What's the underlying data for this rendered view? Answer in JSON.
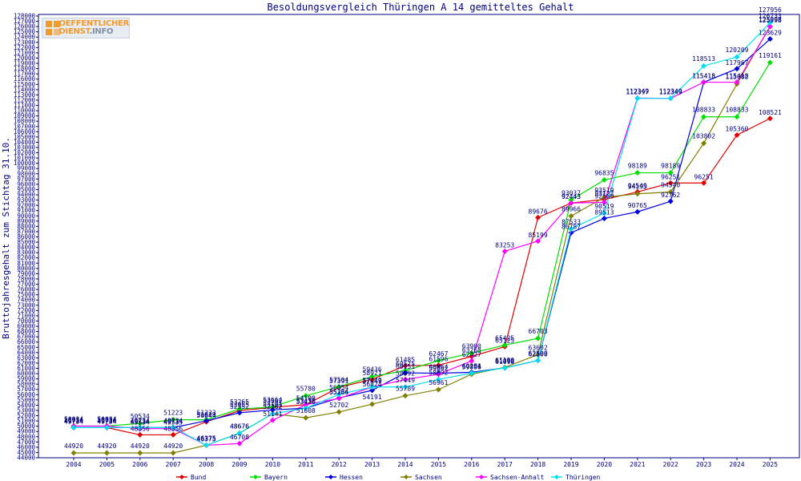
{
  "logo": {
    "line1": "OEFFENTLICHER",
    "line2": "DIENST",
    "line2_suffix": ".INFO",
    "color": "#f39a2c"
  },
  "chart_data": {
    "type": "line",
    "title": "Besoldungsvergleich Thüringen A 14 gemitteltes Gehalt",
    "ylabel": "Bruttojahresgehalt zum Stichtag 31.10.",
    "xlabel": "",
    "ylim": [
      44000,
      128000
    ],
    "ytick_step": 1000,
    "grid": false,
    "legend_position": "bottom",
    "x": [
      "2004",
      "2005",
      "2006",
      "2007",
      "2008",
      "2009",
      "2010",
      "2011",
      "2012",
      "2013",
      "2014",
      "2015",
      "2016",
      "2017",
      "2018",
      "2019",
      "2020",
      "2021",
      "2022",
      "2023",
      "2024",
      "2025"
    ],
    "series": [
      {
        "name": "Bund",
        "color": "#e00000",
        "values": [
          49734,
          49734,
          48356,
          48356,
          50844,
          52955,
          53582,
          54100,
          57391,
          58921,
          61485,
          61596,
          63268,
          65125,
          89676,
          92443,
          93122,
          94549,
          96251,
          96251,
          105360,
          108521
        ]
      },
      {
        "name": "Bayern",
        "color": "#00e000",
        "values": [
          50034,
          50034,
          50534,
          51223,
          51223,
          53265,
          53664,
          55780,
          57504,
          59436,
          60575,
          62467,
          63900,
          65425,
          66703,
          93037,
          96835,
          98189,
          98189,
          108833,
          108833,
          119161
        ]
      },
      {
        "name": "Hessen",
        "color": "#0000e0",
        "values": [
          49734,
          49734,
          49734,
          49734,
          51029,
          52552,
          53101,
          53430,
          55364,
          56824,
          60151,
          60064,
          60254,
          61090,
          62500,
          86787,
          89513,
          90765,
          92762,
          115418,
          117967,
          123629
        ]
      },
      {
        "name": "Sachsen",
        "color": "#808000",
        "values": [
          44920,
          44920,
          44920,
          44920,
          46375,
          48676,
          52362,
          51608,
          52702,
          54191,
          55789,
          56961,
          59896,
          61190,
          63602,
          89966,
          93519,
          94195,
          94540,
          103802,
          115082,
          125998
        ]
      },
      {
        "name": "Sachsen-Anhalt",
        "color": "#ff00ff",
        "values": [
          50034,
          50034,
          49534,
          49535,
          46375,
          46708,
          51141,
          54100,
          55286,
          57449,
          58892,
          59862,
          62427,
          83253,
          85199,
          92443,
          92569,
          112397,
          112349,
          115415,
          115418,
          125998
        ]
      },
      {
        "name": "Thüringen",
        "color": "#00e0f0",
        "values": [
          49734,
          49734,
          49734,
          49734,
          46375,
          48676,
          52362,
          53430,
          56054,
          57449,
          57449,
          58892,
          60101,
          61090,
          62500,
          87533,
          90519,
          112349,
          112349,
          118513,
          120209,
          126733
        ]
      }
    ],
    "top_annotation": "127956"
  }
}
